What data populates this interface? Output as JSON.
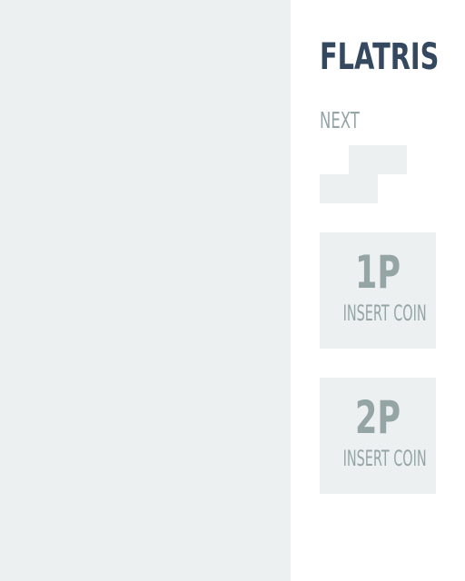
{
  "game": {
    "title": "FLATRIS",
    "next_label": "NEXT",
    "colors": {
      "well_bg": "#ecf0f1",
      "panel_bg": "#ffffff",
      "title_text": "#34495f",
      "muted_text": "#95a5a6"
    }
  },
  "next_piece": {
    "shape": "S",
    "grid": [
      [
        0,
        1,
        1
      ],
      [
        1,
        1,
        0
      ]
    ]
  },
  "players": [
    {
      "id": "1P",
      "cta": "INSERT COIN"
    },
    {
      "id": "2P",
      "cta": "INSERT COIN"
    }
  ]
}
